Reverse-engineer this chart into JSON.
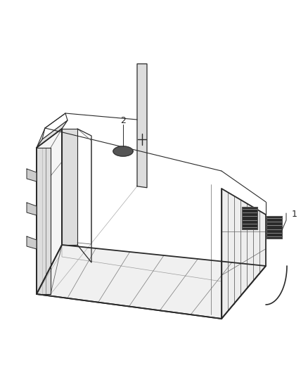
{
  "background_color": "#ffffff",
  "fig_width": 4.38,
  "fig_height": 5.33,
  "dpi": 100,
  "label1": "1",
  "label2": "2",
  "line_color": "#2a2a2a",
  "line_color_light": "#666666",
  "line_color_faint": "#aaaaaa",
  "part_fill": "#3a3a3a",
  "part_fill2": "#555555"
}
